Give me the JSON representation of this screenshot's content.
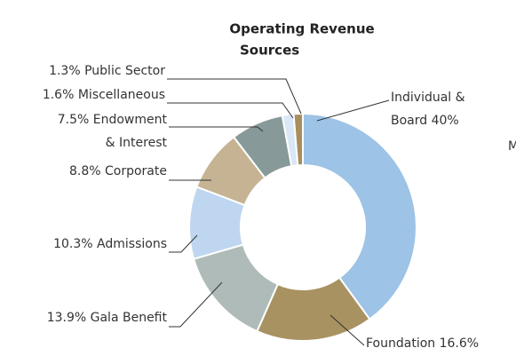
{
  "chart_data": {
    "type": "donut",
    "title": [
      "Operating Revenue",
      "Sources"
    ],
    "values": [
      40,
      16.6,
      13.9,
      10.3,
      8.8,
      7.5,
      1.6,
      1.3
    ],
    "value_labels": [
      [
        "Individual &",
        "Board 40%"
      ],
      [
        "Foundation 16.6%"
      ],
      [
        "13.9% Gala Benefit"
      ],
      [
        "10.3% Admissions"
      ],
      [
        "8.8% Corporate"
      ],
      [
        "7.5% Endowment",
        "& Interest"
      ],
      [
        "1.6% Miscellaneous"
      ],
      [
        "1.3% Public Sector"
      ]
    ],
    "colors": [
      "#9dc3e6",
      "#a89262",
      "#afbbb8",
      "#bed6ef",
      "#c5b393",
      "#879a99",
      "#d9e7f6",
      "#a88d5e"
    ],
    "clipped_text": "M"
  }
}
